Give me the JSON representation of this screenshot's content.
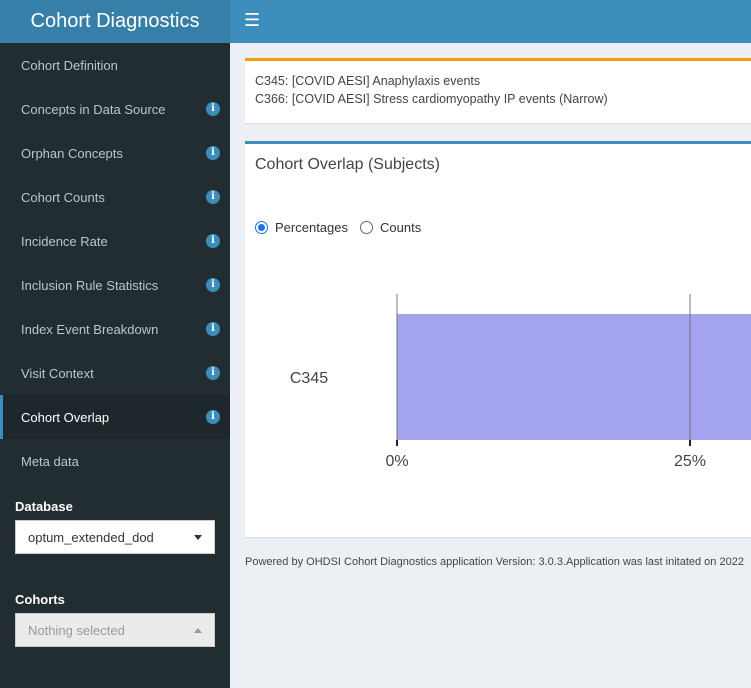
{
  "app": {
    "title": "Cohort Diagnostics"
  },
  "sidebar": {
    "items": [
      {
        "label": "Cohort Definition",
        "info": false
      },
      {
        "label": "Concepts in Data Source",
        "info": true
      },
      {
        "label": "Orphan Concepts",
        "info": true
      },
      {
        "label": "Cohort Counts",
        "info": true
      },
      {
        "label": "Incidence Rate",
        "info": true
      },
      {
        "label": "Inclusion Rule Statistics",
        "info": true
      },
      {
        "label": "Index Event Breakdown",
        "info": true
      },
      {
        "label": "Visit Context",
        "info": true
      },
      {
        "label": "Cohort Overlap",
        "info": true,
        "active": true
      },
      {
        "label": "Meta data",
        "info": false
      }
    ],
    "info_glyph": "i",
    "database_label": "Database",
    "database_value": "optum_extended_dod",
    "cohorts_label": "Cohorts",
    "cohorts_placeholder": "Nothing selected"
  },
  "selected_cohorts": [
    "C345: [COVID AESI] Anaphylaxis events",
    "C366: [COVID AESI] Stress cardiomyopathy IP events (Narrow)"
  ],
  "overlap": {
    "title": "Cohort Overlap (Subjects)",
    "options": [
      {
        "label": "Percentages",
        "checked": true
      },
      {
        "label": "Counts",
        "checked": false
      }
    ]
  },
  "chart_data": {
    "type": "bar",
    "orientation": "horizontal",
    "categories": [
      "C345"
    ],
    "x_ticks": [
      "0%",
      "25%"
    ],
    "color": "#a3a3ef",
    "bar_value_pct": 100,
    "xlim_visible_pct": [
      0,
      30
    ]
  },
  "footer": {
    "text": "Powered by OHDSI Cohort Diagnostics application Version: 3.0.3.Application was last initated on 2022"
  },
  "colors": {
    "header": "#3c8dbc",
    "logo_bg": "#367fa9",
    "sidebar_bg": "#222d32",
    "selected_box_accent": "#f39c12",
    "bar": "#a3a3ef"
  }
}
